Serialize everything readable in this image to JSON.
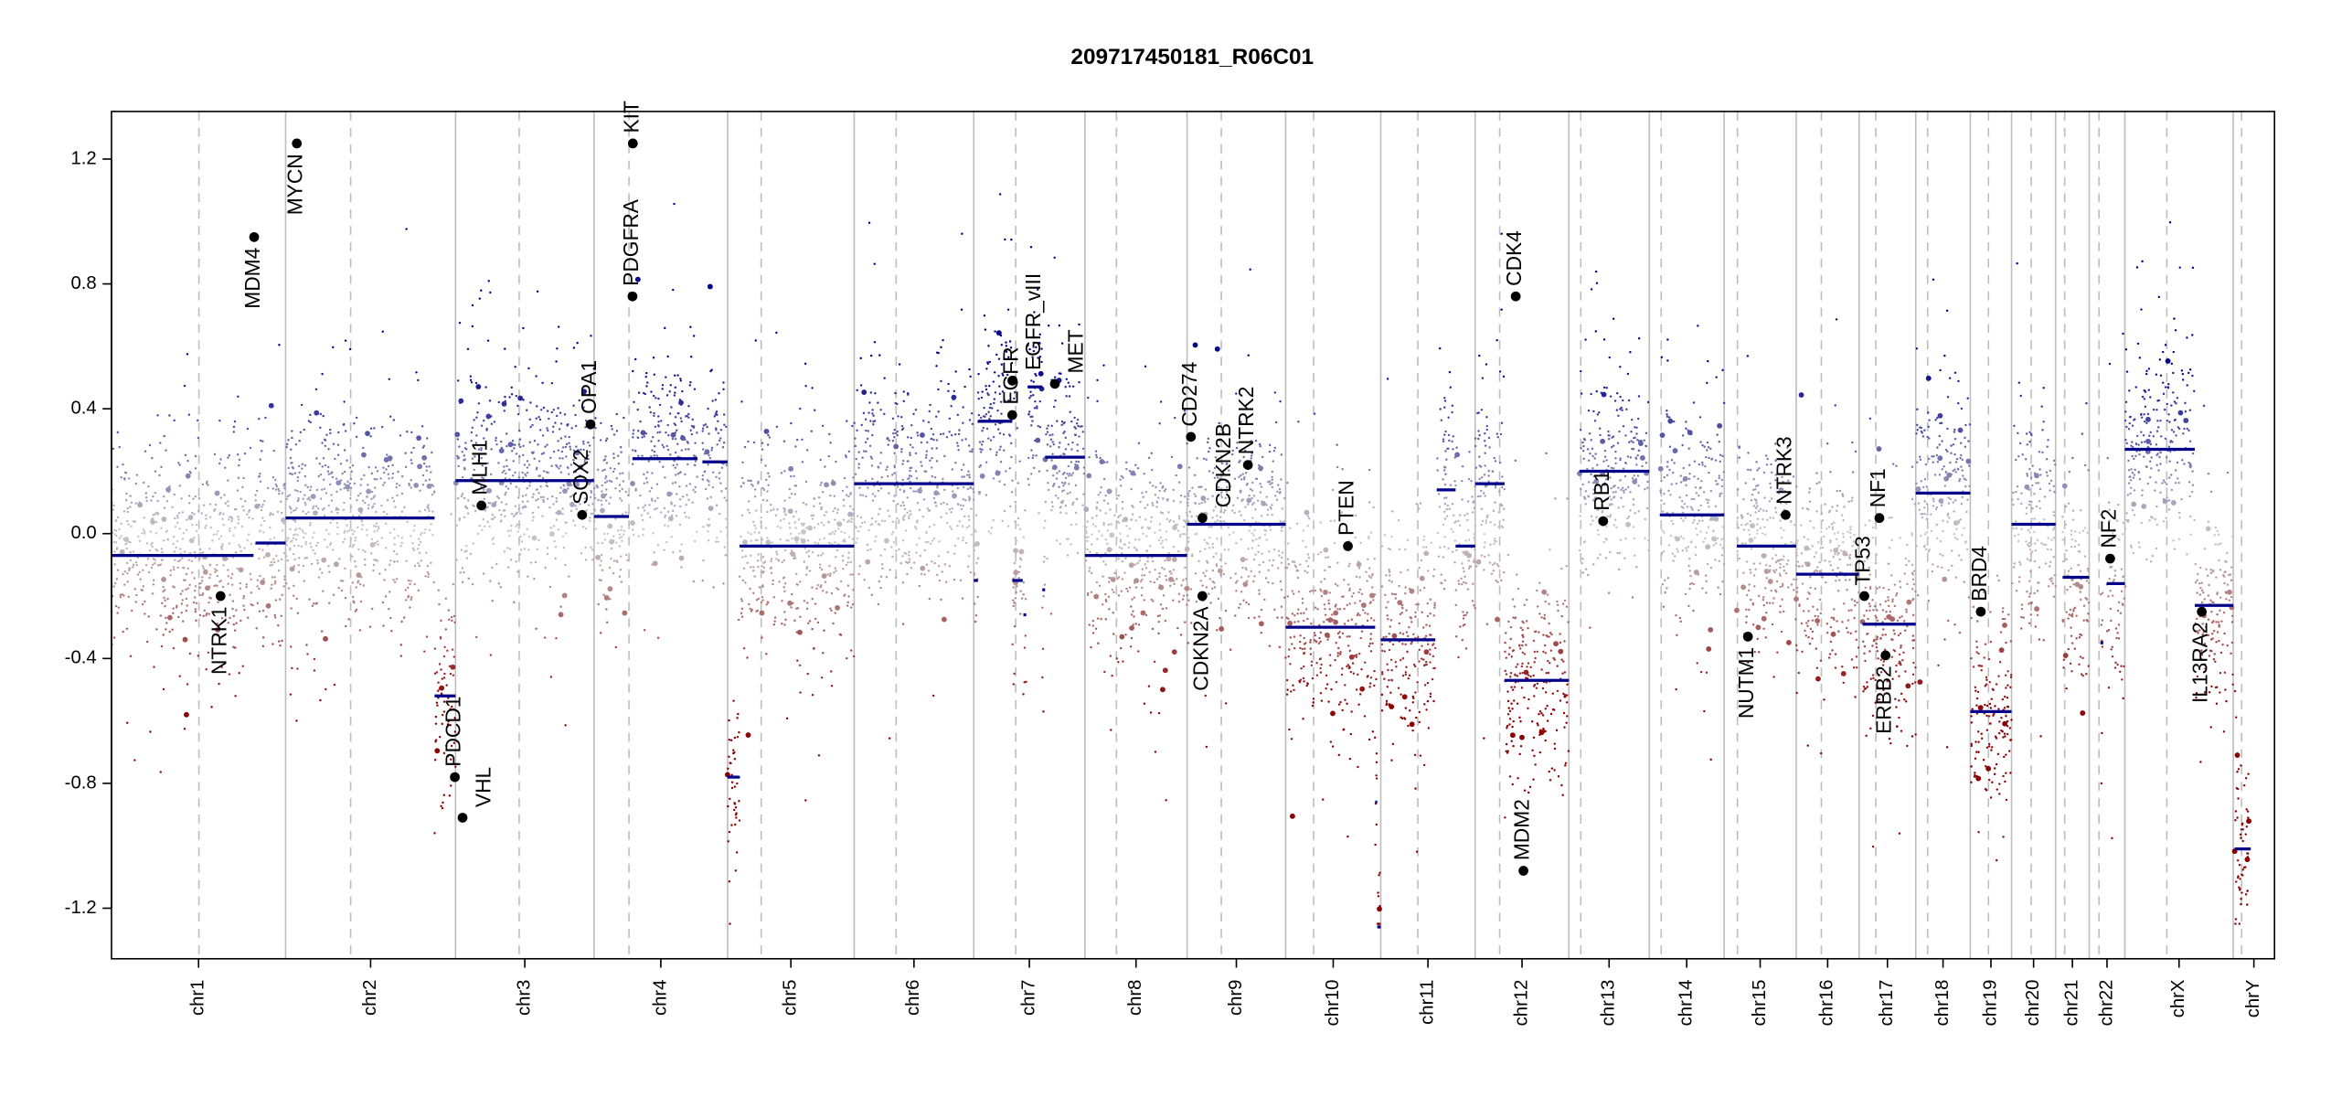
{
  "chart_data": {
    "type": "scatter",
    "title": "209717450181_R06C01",
    "xlabel": "",
    "ylabel": "",
    "ylim": [
      -1.35,
      1.35
    ],
    "y_ticks": [
      "-1.2",
      "-0.8",
      "-0.4",
      "0.0",
      "0.4",
      "0.8",
      "1.2"
    ],
    "chromosomes": [
      {
        "name": "chr1",
        "length": 249,
        "centromere": 125
      },
      {
        "name": "chr2",
        "length": 243,
        "centromere": 93
      },
      {
        "name": "chr3",
        "length": 198,
        "centromere": 91
      },
      {
        "name": "chr4",
        "length": 191,
        "centromere": 50
      },
      {
        "name": "chr5",
        "length": 181,
        "centromere": 48
      },
      {
        "name": "chr6",
        "length": 171,
        "centromere": 60
      },
      {
        "name": "chr7",
        "length": 159,
        "centromere": 60
      },
      {
        "name": "chr8",
        "length": 146,
        "centromere": 45
      },
      {
        "name": "chr9",
        "length": 141,
        "centromere": 49
      },
      {
        "name": "chr10",
        "length": 136,
        "centromere": 40
      },
      {
        "name": "chr11",
        "length": 135,
        "centromere": 53
      },
      {
        "name": "chr12",
        "length": 134,
        "centromere": 35
      },
      {
        "name": "chr13",
        "length": 115,
        "centromere": 17
      },
      {
        "name": "chr14",
        "length": 107,
        "centromere": 17
      },
      {
        "name": "chr15",
        "length": 103,
        "centromere": 19
      },
      {
        "name": "chr16",
        "length": 90,
        "centromere": 36
      },
      {
        "name": "chr17",
        "length": 81,
        "centromere": 24
      },
      {
        "name": "chr18",
        "length": 78,
        "centromere": 17
      },
      {
        "name": "chr19",
        "length": 59,
        "centromere": 26
      },
      {
        "name": "chr20",
        "length": 63,
        "centromere": 28
      },
      {
        "name": "chr21",
        "length": 48,
        "centromere": 13
      },
      {
        "name": "chr22",
        "length": 51,
        "centromere": 14
      },
      {
        "name": "chrX",
        "length": 155,
        "centromere": 60
      },
      {
        "name": "chrY",
        "length": 59,
        "centromere": 12
      }
    ],
    "segments": [
      {
        "chr": "chr1",
        "start": 0,
        "end": 203,
        "value": -0.07
      },
      {
        "chr": "chr1",
        "start": 206,
        "end": 249,
        "value": -0.03
      },
      {
        "chr": "chr2",
        "start": 0,
        "end": 213,
        "value": 0.05
      },
      {
        "chr": "chr2",
        "start": 213,
        "end": 243,
        "value": -0.52
      },
      {
        "chr": "chr3",
        "start": 0,
        "end": 198,
        "value": 0.17
      },
      {
        "chr": "chr4",
        "start": 0,
        "end": 50,
        "value": 0.055
      },
      {
        "chr": "chr4",
        "start": 55,
        "end": 148,
        "value": 0.24
      },
      {
        "chr": "chr4",
        "start": 155,
        "end": 191,
        "value": 0.23
      },
      {
        "chr": "chr5",
        "start": 0,
        "end": 17,
        "value": -0.78
      },
      {
        "chr": "chr5",
        "start": 17,
        "end": 181,
        "value": -0.04
      },
      {
        "chr": "chr6",
        "start": 0,
        "end": 171,
        "value": 0.16
      },
      {
        "chr": "chr7",
        "start": 0,
        "end": 6,
        "value": -0.15
      },
      {
        "chr": "chr7",
        "start": 6,
        "end": 55,
        "value": 0.36
      },
      {
        "chr": "chr7",
        "start": 55,
        "end": 70,
        "value": -0.15
      },
      {
        "chr": "chr7",
        "start": 71,
        "end": 75,
        "value": -0.26
      },
      {
        "chr": "chr7",
        "start": 77,
        "end": 98,
        "value": 0.47
      },
      {
        "chr": "chr7",
        "start": 98,
        "end": 102,
        "value": -0.18
      },
      {
        "chr": "chr7",
        "start": 102,
        "end": 159,
        "value": 0.245
      },
      {
        "chr": "chr8",
        "start": 0,
        "end": 146,
        "value": -0.07
      },
      {
        "chr": "chr9",
        "start": 0,
        "end": 141,
        "value": 0.03
      },
      {
        "chr": "chr10",
        "start": 0,
        "end": 128,
        "value": -0.3
      },
      {
        "chr": "chr10",
        "start": 128,
        "end": 131,
        "value": -0.86
      },
      {
        "chr": "chr10",
        "start": 131,
        "end": 136,
        "value": -1.26
      },
      {
        "chr": "chr11",
        "start": 0,
        "end": 78,
        "value": -0.34
      },
      {
        "chr": "chr11",
        "start": 80,
        "end": 107,
        "value": 0.14
      },
      {
        "chr": "chr11",
        "start": 107,
        "end": 135,
        "value": -0.04
      },
      {
        "chr": "chr12",
        "start": 0,
        "end": 42,
        "value": 0.16
      },
      {
        "chr": "chr12",
        "start": 42,
        "end": 134,
        "value": -0.47
      },
      {
        "chr": "chr13",
        "start": 15,
        "end": 115,
        "value": 0.2
      },
      {
        "chr": "chr14",
        "start": 15,
        "end": 107,
        "value": 0.06
      },
      {
        "chr": "chr15",
        "start": 18,
        "end": 103,
        "value": -0.04
      },
      {
        "chr": "chr16",
        "start": 0,
        "end": 90,
        "value": -0.13
      },
      {
        "chr": "chr17",
        "start": 5,
        "end": 81,
        "value": -0.29
      },
      {
        "chr": "chr18",
        "start": 0,
        "end": 78,
        "value": 0.13
      },
      {
        "chr": "chr19",
        "start": 0,
        "end": 59,
        "value": -0.57
      },
      {
        "chr": "chr20",
        "start": 0,
        "end": 63,
        "value": 0.03
      },
      {
        "chr": "chr21",
        "start": 10,
        "end": 48,
        "value": -0.14
      },
      {
        "chr": "chr22",
        "start": 16,
        "end": 20,
        "value": -0.35
      },
      {
        "chr": "chr22",
        "start": 25,
        "end": 51,
        "value": -0.16
      },
      {
        "chr": "chrX",
        "start": 0,
        "end": 100,
        "value": 0.27
      },
      {
        "chr": "chrX",
        "start": 100,
        "end": 155,
        "value": -0.23
      },
      {
        "chr": "chrY",
        "start": 2,
        "end": 25,
        "value": -1.01
      }
    ],
    "genes": [
      {
        "name": "NTRK1",
        "chr": "chr1",
        "pos": 156,
        "value": -0.2,
        "label": "below"
      },
      {
        "name": "MDM4",
        "chr": "chr1",
        "pos": 204,
        "value": 0.95,
        "label": "below"
      },
      {
        "name": "MYCN",
        "chr": "chr2",
        "pos": 16,
        "value": 1.25,
        "label": "below"
      },
      {
        "name": "PDCD1",
        "chr": "chr2",
        "pos": 242,
        "value": -0.78,
        "label": "above"
      },
      {
        "name": "VHL",
        "chr": "chr3",
        "pos": 10,
        "value": -0.91,
        "label": "above"
      },
      {
        "name": "MLH1",
        "chr": "chr3",
        "pos": 37,
        "value": 0.09,
        "label": "above"
      },
      {
        "name": "SOX2",
        "chr": "chr3",
        "pos": 181,
        "value": 0.06,
        "label": "above"
      },
      {
        "name": "OPA1",
        "chr": "chr3",
        "pos": 193,
        "value": 0.35,
        "label": "above"
      },
      {
        "name": "PDGFRA",
        "chr": "chr4",
        "pos": 55,
        "value": 0.76,
        "label": "above"
      },
      {
        "name": "KIT",
        "chr": "chr4",
        "pos": 55.5,
        "value": 1.25,
        "label": "above"
      },
      {
        "name": "EGFR",
        "chr": "chr7",
        "pos": 55,
        "value": 0.38,
        "label": "above"
      },
      {
        "name": "EGFR_vIII",
        "chr": "chr7",
        "pos": 55.2,
        "value": 0.49,
        "label": "above"
      },
      {
        "name": "MET",
        "chr": "chr7",
        "pos": 116,
        "value": 0.48,
        "label": "above"
      },
      {
        "name": "CD274",
        "chr": "chr9",
        "pos": 5.5,
        "value": 0.31,
        "label": "above"
      },
      {
        "name": "CDKN2B",
        "chr": "chr9",
        "pos": 22,
        "value": 0.05,
        "label": "above"
      },
      {
        "name": "CDKN2A",
        "chr": "chr9",
        "pos": 21.9,
        "value": -0.2,
        "label": "below"
      },
      {
        "name": "NTRK2",
        "chr": "chr9",
        "pos": 87,
        "value": 0.22,
        "label": "above"
      },
      {
        "name": "PTEN",
        "chr": "chr10",
        "pos": 89,
        "value": -0.04,
        "label": "above"
      },
      {
        "name": "CDK4",
        "chr": "chr12",
        "pos": 58,
        "value": 0.76,
        "label": "above"
      },
      {
        "name": "MDM2",
        "chr": "chr12",
        "pos": 69,
        "value": -1.08,
        "label": "above"
      },
      {
        "name": "RB1",
        "chr": "chr13",
        "pos": 49,
        "value": 0.04,
        "label": "above"
      },
      {
        "name": "NUTM1",
        "chr": "chr15",
        "pos": 34,
        "value": -0.33,
        "label": "below"
      },
      {
        "name": "NTRK3",
        "chr": "chr15",
        "pos": 88,
        "value": 0.06,
        "label": "above"
      },
      {
        "name": "TP53",
        "chr": "chr17",
        "pos": 7.5,
        "value": -0.2,
        "label": "above"
      },
      {
        "name": "NF1",
        "chr": "chr17",
        "pos": 29,
        "value": 0.05,
        "label": "above"
      },
      {
        "name": "ERBB2",
        "chr": "chr17",
        "pos": 37.8,
        "value": -0.39,
        "label": "below"
      },
      {
        "name": "BRD4",
        "chr": "chr19",
        "pos": 15,
        "value": -0.25,
        "label": "above"
      },
      {
        "name": "NF2",
        "chr": "chr22",
        "pos": 30,
        "value": -0.08,
        "label": "above"
      },
      {
        "name": "IL13RA2",
        "chr": "chrX",
        "pos": 110,
        "value": -0.25,
        "label": "below"
      }
    ],
    "colors": {
      "gain": "#00008B",
      "loss": "#8B0000",
      "neutral": "#C8C8C8",
      "segment": "#00008B",
      "gene": "#000000",
      "chr_line": "#BEBEBE"
    }
  }
}
